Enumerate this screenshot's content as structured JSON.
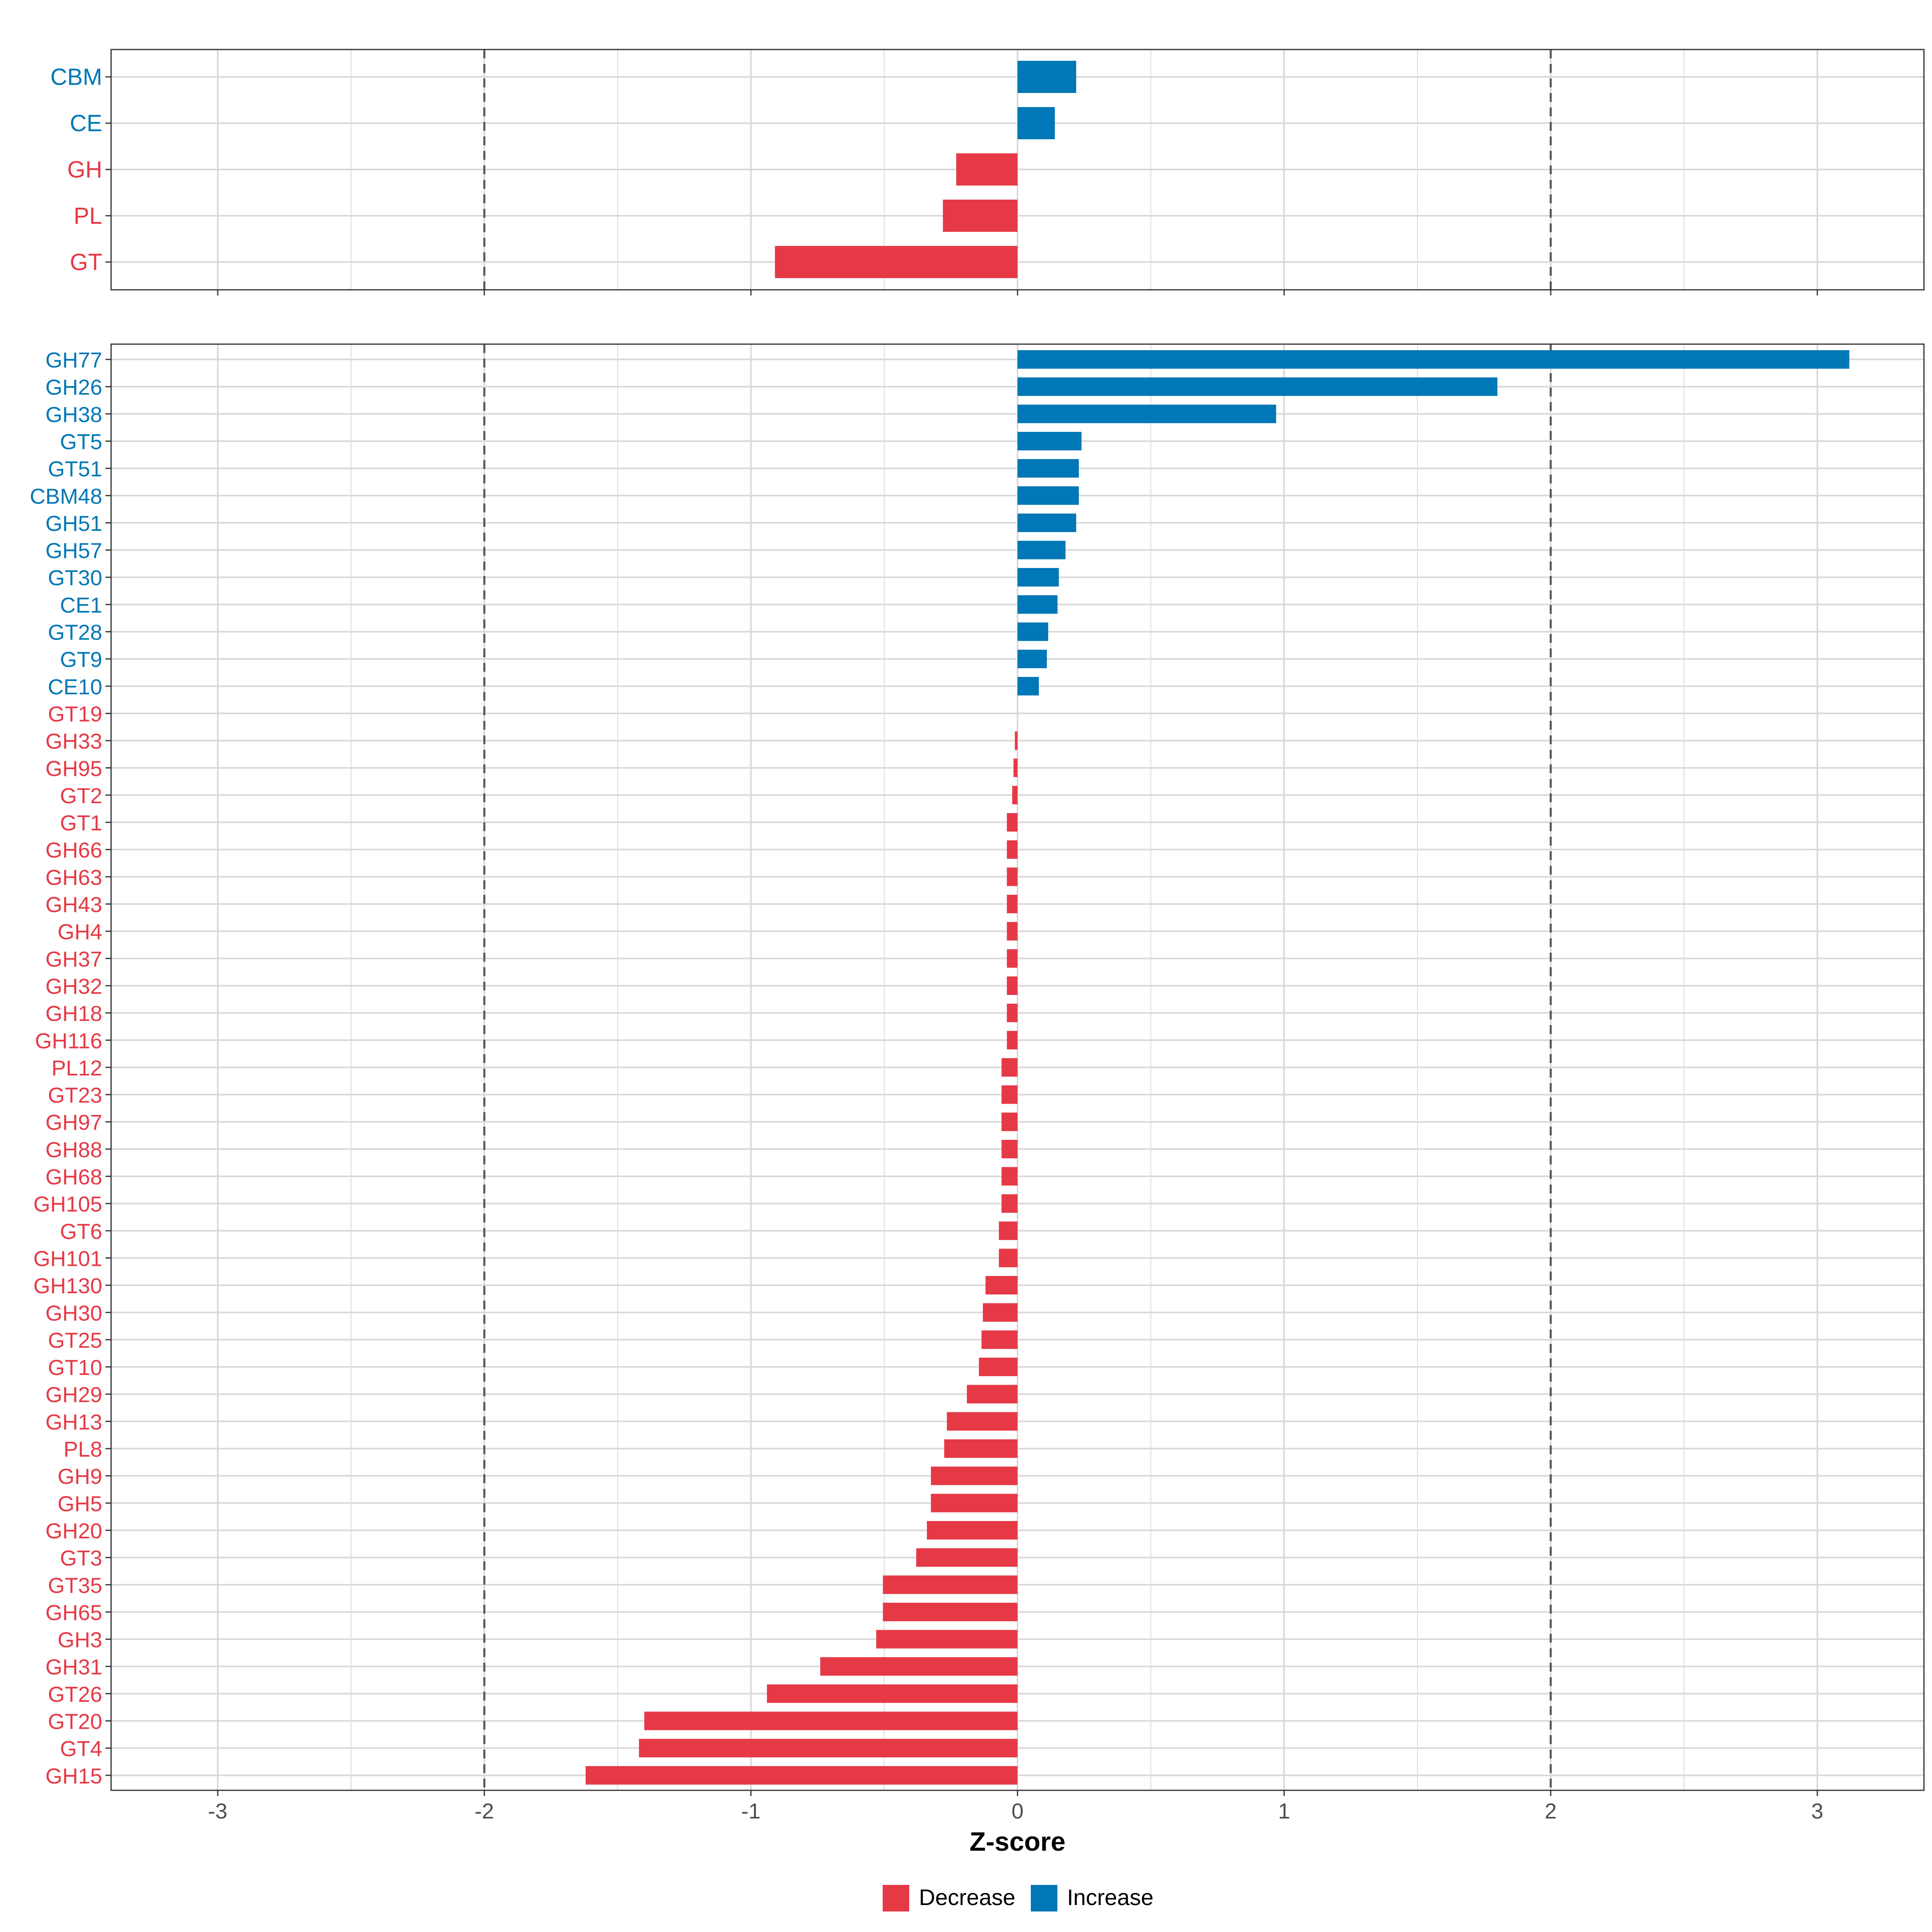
{
  "chart_data": [
    {
      "type": "bar",
      "orientation": "horizontal",
      "panel": "top",
      "categories": [
        "CBM",
        "CE",
        "GH",
        "PL",
        "GT"
      ],
      "values": [
        0.22,
        0.14,
        -0.23,
        -0.28,
        -0.91
      ],
      "directions": [
        "Increase",
        "Increase",
        "Decrease",
        "Decrease",
        "Decrease"
      ],
      "xlim": [
        -3.4,
        3.4
      ],
      "reference_lines": [
        -2,
        2
      ],
      "grid": true,
      "xticks": [
        -3,
        -2,
        -1,
        0,
        1,
        2,
        3
      ]
    },
    {
      "type": "bar",
      "orientation": "horizontal",
      "panel": "bottom",
      "categories": [
        "GH77",
        "GH26",
        "GH38",
        "GT5",
        "GT51",
        "CBM48",
        "GH51",
        "GH57",
        "GT30",
        "CE1",
        "GT28",
        "GT9",
        "CE10",
        "GT19",
        "GH33",
        "GH95",
        "GT2",
        "GT1",
        "GH66",
        "GH63",
        "GH43",
        "GH4",
        "GH37",
        "GH32",
        "GH18",
        "GH116",
        "PL12",
        "GT23",
        "GH97",
        "GH88",
        "GH68",
        "GH105",
        "GT6",
        "GH101",
        "GH130",
        "GH30",
        "GT25",
        "GT10",
        "GH29",
        "GH13",
        "PL8",
        "GH9",
        "GH5",
        "GH20",
        "GT3",
        "GT35",
        "GH65",
        "GH3",
        "GH31",
        "GT26",
        "GT20",
        "GT4",
        "GH15"
      ],
      "values": [
        3.12,
        1.8,
        0.97,
        0.24,
        0.23,
        0.23,
        0.22,
        0.18,
        0.155,
        0.15,
        0.115,
        0.11,
        0.08,
        0,
        -0.01,
        -0.015,
        -0.02,
        -0.04,
        -0.04,
        -0.04,
        -0.04,
        -0.04,
        -0.04,
        -0.04,
        -0.04,
        -0.04,
        -0.06,
        -0.06,
        -0.06,
        -0.06,
        -0.06,
        -0.06,
        -0.07,
        -0.07,
        -0.12,
        -0.13,
        -0.135,
        -0.145,
        -0.19,
        -0.265,
        -0.275,
        -0.325,
        -0.325,
        -0.34,
        -0.38,
        -0.505,
        -0.505,
        -0.53,
        -0.74,
        -0.94,
        -1.4,
        -1.42,
        -1.62
      ],
      "directions": [
        "Increase",
        "Increase",
        "Increase",
        "Increase",
        "Increase",
        "Increase",
        "Increase",
        "Increase",
        "Increase",
        "Increase",
        "Increase",
        "Increase",
        "Increase",
        "Decrease",
        "Decrease",
        "Decrease",
        "Decrease",
        "Decrease",
        "Decrease",
        "Decrease",
        "Decrease",
        "Decrease",
        "Decrease",
        "Decrease",
        "Decrease",
        "Decrease",
        "Decrease",
        "Decrease",
        "Decrease",
        "Decrease",
        "Decrease",
        "Decrease",
        "Decrease",
        "Decrease",
        "Decrease",
        "Decrease",
        "Decrease",
        "Decrease",
        "Decrease",
        "Decrease",
        "Decrease",
        "Decrease",
        "Decrease",
        "Decrease",
        "Decrease",
        "Decrease",
        "Decrease",
        "Decrease",
        "Decrease",
        "Decrease",
        "Decrease",
        "Decrease",
        "Decrease"
      ],
      "xlim": [
        -3.4,
        3.4
      ],
      "reference_lines": [
        -2,
        2
      ],
      "grid": true,
      "xticks": [
        -3,
        -2,
        -1,
        0,
        1,
        2,
        3
      ],
      "xlabel": "Z-score"
    }
  ],
  "legend": {
    "position": "bottom",
    "items": [
      {
        "label": "Decrease",
        "color": "#E63946"
      },
      {
        "label": "Increase",
        "color": "#0077B6"
      }
    ]
  },
  "colors": {
    "Decrease": "#E63946",
    "Increase": "#0077B6",
    "grid": "#D9D9D9",
    "frame": "#333333",
    "reference_line": "#555555"
  }
}
